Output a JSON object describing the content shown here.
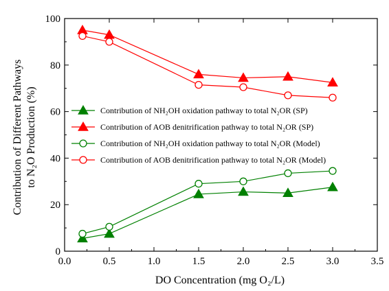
{
  "chart_data": {
    "type": "line",
    "x": [
      0.2,
      0.5,
      1.5,
      2.0,
      2.5,
      3.0
    ],
    "xlabel": "DO Concentration (mg O₂/L)",
    "ylabel_line1": "Contribution of Different Pathways",
    "ylabel_line2": "to N₂O Production (%)",
    "xlim": [
      0.0,
      3.5
    ],
    "ylim": [
      0,
      100
    ],
    "xticks": [
      0.0,
      0.5,
      1.0,
      1.5,
      2.0,
      2.5,
      3.0,
      3.5
    ],
    "xtick_labels": [
      "0.0",
      "0.5",
      "1.0",
      "1.5",
      "2.0",
      "2.5",
      "3.0",
      "3.5"
    ],
    "yticks": [
      0,
      20,
      40,
      60,
      80,
      100
    ],
    "ytick_labels": [
      "0",
      "20",
      "40",
      "60",
      "80",
      "100"
    ],
    "grid": false,
    "legend_position": "center",
    "series": [
      {
        "name": "Contribution of NH₂OH oxidation pathway to total N₂OR (SP)",
        "values": [
          5.5,
          7.5,
          24.5,
          25.5,
          25.0,
          27.5
        ],
        "color": "#008000",
        "marker": "filled-triangle"
      },
      {
        "name": "Contribution of AOB denitrification pathway to total N₂OR (SP)",
        "values": [
          95.0,
          93.0,
          76.0,
          74.5,
          75.0,
          72.5
        ],
        "color": "#ff0000",
        "marker": "filled-triangle"
      },
      {
        "name": "Contribution of  NH₂OH oxidation pathway to total N₂OR (Model)",
        "values": [
          7.5,
          10.5,
          29.0,
          30.0,
          33.5,
          34.5
        ],
        "color": "#008000",
        "marker": "open-circle"
      },
      {
        "name": "Contribution of AOB denitrification pathway to total N₂OR (Model)",
        "values": [
          92.5,
          90.0,
          71.5,
          70.5,
          67.0,
          66.0
        ],
        "color": "#ff0000",
        "marker": "open-circle"
      }
    ]
  }
}
